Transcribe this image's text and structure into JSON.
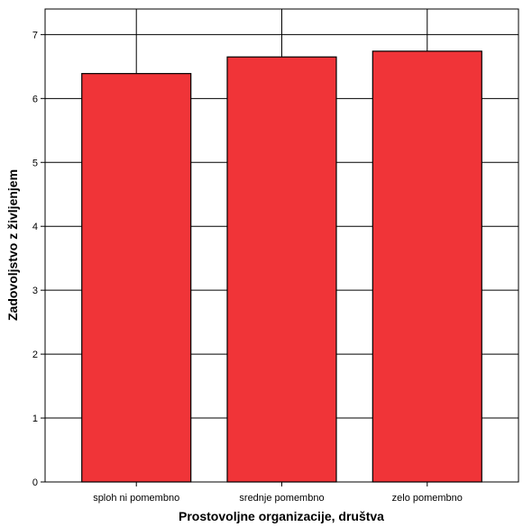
{
  "chart_data": {
    "type": "bar",
    "title": "",
    "xlabel": "Prostovoljne organizacije, društva",
    "ylabel": "Zadovoljstvo z življenjem",
    "categories": [
      "sploh ni pomembno",
      "srednje pomembno",
      "zelo pomembno"
    ],
    "values": [
      6.39,
      6.65,
      6.74
    ],
    "ylim": [
      0,
      7.4
    ],
    "yticks": [
      0,
      1,
      2,
      3,
      4,
      5,
      6,
      7
    ],
    "grid": "horizontal-and-vertical",
    "legend": "none",
    "colors": {
      "bar_fill": "#F03438",
      "bar_stroke": "#000000",
      "grid": "#000000"
    }
  }
}
